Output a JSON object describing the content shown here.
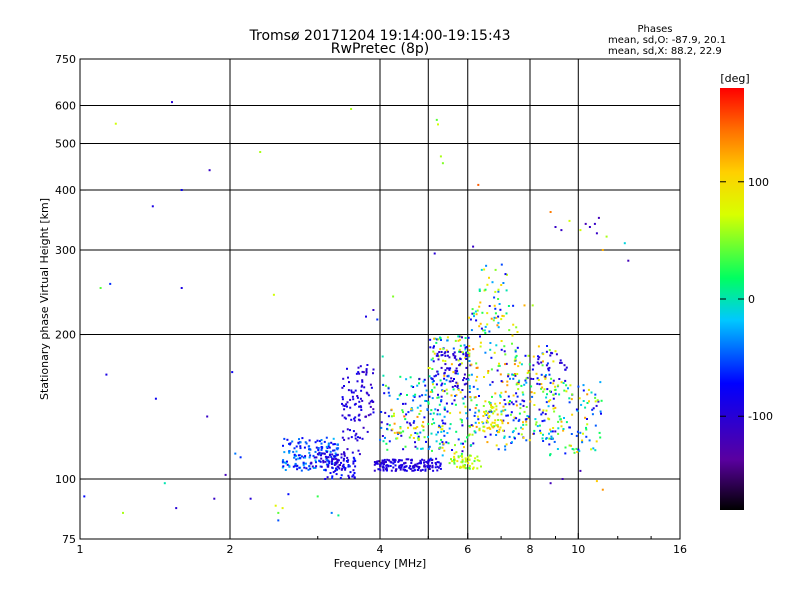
{
  "chart_data": {
    "type": "scatter",
    "title": "Tromsø 20171204 19:14:00-19:15:43",
    "subtitle": "RwPretec (8p)",
    "stats": {
      "heading": "Phases",
      "line_o": "mean, sd,O: -87.9, 20.1",
      "line_x": "mean, sd,X: 88.2, 22.9"
    },
    "xlabel": "Frequency [MHz]",
    "ylabel": "Stationary phase Virtual Height [km]",
    "x_scale": "log",
    "y_scale": "log",
    "xlim": [
      1,
      16
    ],
    "ylim": [
      75,
      750
    ],
    "x_ticks": [
      1,
      2,
      4,
      6,
      8,
      10,
      16
    ],
    "x_tick_labels": [
      "1",
      "2",
      "4",
      "6",
      "8",
      "10",
      "16"
    ],
    "x_grid": [
      2,
      4,
      5,
      6,
      8,
      10
    ],
    "y_ticks": [
      75,
      100,
      200,
      300,
      400,
      500,
      600,
      750
    ],
    "y_tick_labels": [
      "75",
      "100",
      "200",
      "300",
      "400",
      "500",
      "600",
      "750"
    ],
    "y_grid": [
      100,
      200,
      300,
      400,
      500,
      600
    ],
    "grid": true,
    "colorbar": {
      "label": "[deg]",
      "range": [
        -180,
        180
      ],
      "ticks": [
        100,
        0,
        -100
      ],
      "tick_labels": [
        "100",
        "0",
        "-100"
      ]
    },
    "points": [
      [
        1.02,
        92,
        -70
      ],
      [
        1.1,
        250,
        40
      ],
      [
        1.15,
        255,
        -60
      ],
      [
        1.18,
        550,
        70
      ],
      [
        1.22,
        85,
        60
      ],
      [
        1.13,
        165,
        -90
      ],
      [
        1.4,
        370,
        -90
      ],
      [
        1.42,
        147,
        -80
      ],
      [
        1.48,
        98,
        0
      ],
      [
        1.53,
        610,
        -100
      ],
      [
        1.56,
        87,
        -100
      ],
      [
        1.6,
        400,
        -80
      ],
      [
        1.6,
        250,
        -90
      ],
      [
        1.8,
        135,
        -110
      ],
      [
        1.82,
        440,
        -110
      ],
      [
        1.86,
        91,
        -110
      ],
      [
        1.96,
        102,
        -120
      ],
      [
        2.02,
        167,
        -80
      ],
      [
        2.05,
        113,
        -40
      ],
      [
        2.1,
        111,
        -60
      ],
      [
        2.2,
        91,
        -100
      ],
      [
        2.3,
        480,
        60
      ],
      [
        2.45,
        242,
        70
      ],
      [
        2.47,
        88,
        80
      ],
      [
        2.5,
        85,
        40
      ],
      [
        2.5,
        82,
        -50
      ],
      [
        2.55,
        87,
        80
      ],
      [
        2.62,
        93,
        -70
      ],
      [
        3.0,
        92,
        30
      ],
      [
        3.2,
        85,
        -40
      ],
      [
        3.3,
        84,
        10
      ],
      [
        3.5,
        590,
        60
      ],
      [
        3.75,
        218,
        -90
      ],
      [
        3.88,
        225,
        -110
      ],
      [
        3.95,
        215,
        -60
      ],
      [
        4.05,
        180,
        0
      ],
      [
        5.15,
        295,
        -100
      ],
      [
        5.2,
        560,
        40
      ],
      [
        5.23,
        548,
        70
      ],
      [
        5.3,
        470,
        60
      ],
      [
        5.35,
        455,
        50
      ],
      [
        6.15,
        305,
        -110
      ],
      [
        6.3,
        410,
        150
      ],
      [
        7.8,
        230,
        120
      ],
      [
        8.1,
        230,
        60
      ],
      [
        8.8,
        360,
        140
      ],
      [
        9.0,
        335,
        -110
      ],
      [
        9.25,
        330,
        -110
      ],
      [
        9.6,
        345,
        70
      ],
      [
        10.1,
        330,
        70
      ],
      [
        10.35,
        340,
        -120
      ],
      [
        10.55,
        335,
        -110
      ],
      [
        10.8,
        340,
        -110
      ],
      [
        10.9,
        325,
        -110
      ],
      [
        11.0,
        350,
        -120
      ],
      [
        11.2,
        300,
        120
      ],
      [
        11.4,
        320,
        60
      ],
      [
        10.9,
        99,
        110
      ],
      [
        11.2,
        95,
        130
      ],
      [
        12.4,
        310,
        -10
      ],
      [
        12.6,
        285,
        -120
      ],
      [
        9.3,
        100,
        -120
      ],
      [
        10.1,
        104,
        -120
      ],
      [
        8.8,
        98,
        -120
      ],
      [
        8.5,
        120,
        -60
      ],
      [
        4.3,
        104,
        -100
      ],
      [
        4.25,
        240,
        50
      ]
    ],
    "clusters": [
      {
        "f": [
          2.55,
          3.3
        ],
        "h": [
          104,
          122
        ],
        "n": 160,
        "ph": [
          -90,
          -20
        ]
      },
      {
        "f": [
          2.9,
          3.4
        ],
        "h": [
          105,
          114
        ],
        "n": 40,
        "ph": [
          -110,
          -90
        ]
      },
      {
        "f": [
          3.1,
          3.6
        ],
        "h": [
          100,
          112
        ],
        "n": 55,
        "ph": [
          -110,
          -60
        ]
      },
      {
        "f": [
          3.35,
          3.7
        ],
        "h": [
          112,
          170
        ],
        "n": 70,
        "ph": [
          -110,
          -80
        ]
      },
      {
        "f": [
          3.6,
          3.9
        ],
        "h": [
          125,
          175
        ],
        "n": 40,
        "ph": [
          -120,
          -80
        ]
      },
      {
        "f": [
          3.9,
          5.3
        ],
        "h": [
          104,
          110
        ],
        "n": 170,
        "ph": [
          -110,
          -80
        ]
      },
      {
        "f": [
          4.0,
          5.5
        ],
        "h": [
          115,
          165
        ],
        "n": 130,
        "ph": [
          -110,
          40
        ]
      },
      {
        "f": [
          4.2,
          5.0
        ],
        "h": [
          120,
          140
        ],
        "n": 35,
        "ph": [
          20,
          150
        ]
      },
      {
        "f": [
          5.0,
          6.1
        ],
        "h": [
          110,
          200
        ],
        "n": 170,
        "ph": [
          -110,
          120
        ]
      },
      {
        "f": [
          5.1,
          6.0
        ],
        "h": [
          155,
          185
        ],
        "n": 60,
        "ph": [
          -110,
          -90
        ]
      },
      {
        "f": [
          5.5,
          6.4
        ],
        "h": [
          105,
          112
        ],
        "n": 50,
        "ph": [
          30,
          100
        ]
      },
      {
        "f": [
          6.0,
          7.6
        ],
        "h": [
          115,
          230
        ],
        "n": 200,
        "ph": [
          -110,
          140
        ]
      },
      {
        "f": [
          6.3,
          7.2
        ],
        "h": [
          215,
          280
        ],
        "n": 30,
        "ph": [
          -100,
          130
        ]
      },
      {
        "f": [
          6.3,
          7.1
        ],
        "h": [
          125,
          145
        ],
        "n": 45,
        "ph": [
          40,
          120
        ]
      },
      {
        "f": [
          7.4,
          9.0
        ],
        "h": [
          120,
          190
        ],
        "n": 140,
        "ph": [
          -110,
          130
        ]
      },
      {
        "f": [
          8.7,
          11.2
        ],
        "h": [
          112,
          160
        ],
        "n": 110,
        "ph": [
          -100,
          130
        ]
      },
      {
        "f": [
          8.0,
          9.5
        ],
        "h": [
          160,
          185
        ],
        "n": 25,
        "ph": [
          -110,
          -90
        ]
      }
    ]
  }
}
